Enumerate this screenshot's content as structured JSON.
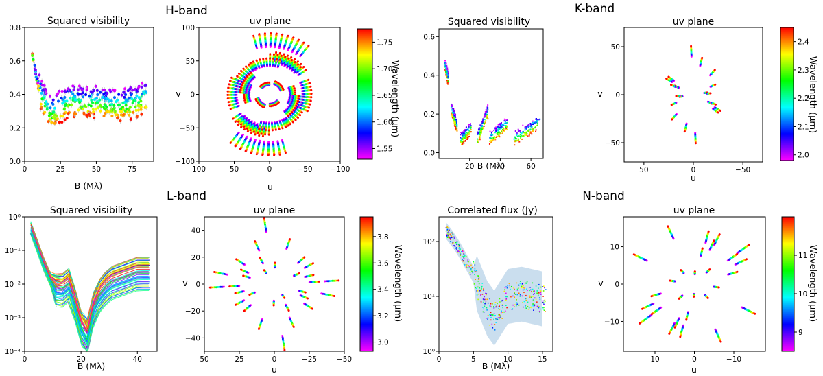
{
  "figure": {
    "colorbar_label": "Wavelength (μm)",
    "bands": [
      {
        "key": "H",
        "name": "H-band",
        "left": {
          "title": "Squared visibility",
          "xlabel": "B (Mλ)",
          "xlim": [
            0,
            90
          ],
          "ylim": [
            0,
            0.8
          ],
          "yscale": "linear",
          "xticks": [
            0,
            25,
            50,
            75
          ],
          "xtick_labels": [
            "0",
            "25",
            "50",
            "75"
          ],
          "yticks": [
            0,
            0.2,
            0.4,
            0.6,
            0.8
          ],
          "ytick_labels": [
            "0.0",
            "0.2",
            "0.4",
            "0.6",
            "0.8"
          ]
        },
        "uv": {
          "title": "uv plane",
          "xlabel": "u",
          "ylabel": "v",
          "lim": 100,
          "xticks": [
            100,
            50,
            0,
            -50,
            -100
          ],
          "xtick_labels": [
            "100",
            "50",
            "0",
            "−50",
            "−100"
          ],
          "yticks": [
            100,
            50,
            0,
            -50,
            -100
          ],
          "ytick_labels": [
            "100",
            "50",
            "0",
            "−50",
            "−100"
          ]
        },
        "colorbar": {
          "range": [
            1.53,
            1.775
          ],
          "ticks": [
            1.55,
            1.6,
            1.65,
            1.7,
            1.75
          ],
          "tick_labels": [
            "1.55",
            "1.60",
            "1.65",
            "1.70",
            "1.75"
          ]
        }
      },
      {
        "key": "K",
        "name": "K-band",
        "left": {
          "title": "Squared visibility",
          "xlabel": "B (Mλ)",
          "xlim": [
            0,
            68
          ],
          "ylim": [
            -0.03,
            0.64
          ],
          "yscale": "linear",
          "xticks": [
            20,
            40,
            60
          ],
          "xtick_labels": [
            "20",
            "40",
            "60"
          ],
          "yticks": [
            0,
            0.2,
            0.4,
            0.6
          ],
          "ytick_labels": [
            "0.0",
            "0.2",
            "0.4",
            "0.6"
          ]
        },
        "uv": {
          "title": "uv plane",
          "xlabel": "u",
          "ylabel": "v",
          "lim": 70,
          "xticks": [
            50,
            0,
            -50
          ],
          "xtick_labels": [
            "50",
            "0",
            "−50"
          ],
          "yticks": [
            50,
            0,
            -50
          ],
          "ytick_labels": [
            "50",
            "0",
            "−50"
          ]
        },
        "colorbar": {
          "range": [
            1.98,
            2.45
          ],
          "ticks": [
            2.0,
            2.1,
            2.2,
            2.3,
            2.4
          ],
          "tick_labels": [
            "2.0",
            "2.1",
            "2.2",
            "2.3",
            "2.4"
          ]
        }
      },
      {
        "key": "L",
        "name": "L-band",
        "left": {
          "title": "Squared visibility",
          "xlabel": "B (Mλ)",
          "xlim": [
            0,
            47
          ],
          "ylim": [
            -4,
            0
          ],
          "yscale": "log",
          "xticks": [
            0,
            20,
            40
          ],
          "xtick_labels": [
            "0",
            "20",
            "40"
          ],
          "yticks": [
            0,
            -1,
            -2,
            -3,
            -4
          ],
          "ytick_labels": [
            "10⁰",
            "10⁻¹",
            "10⁻²",
            "10⁻³",
            "10⁻⁴"
          ]
        },
        "uv": {
          "title": "uv plane",
          "xlabel": "u",
          "ylabel": "v",
          "lim": 50,
          "xticks": [
            50,
            25,
            0,
            -25,
            -50
          ],
          "xtick_labels": [
            "50",
            "25",
            "0",
            "−25",
            "−50"
          ],
          "yticks": [
            40,
            20,
            0,
            -20,
            -40
          ],
          "ytick_labels": [
            "40",
            "20",
            "0",
            "−20",
            "−40"
          ]
        },
        "colorbar": {
          "range": [
            2.93,
            3.95
          ],
          "ticks": [
            3.0,
            3.2,
            3.4,
            3.6,
            3.8
          ],
          "tick_labels": [
            "3.0",
            "3.2",
            "3.4",
            "3.6",
            "3.8"
          ]
        }
      },
      {
        "key": "N",
        "name": "N-band",
        "left": {
          "title": "Correlated flux (Jy)",
          "xlabel": "B (Mλ)",
          "xlim": [
            0,
            16.5
          ],
          "ylim": [
            0,
            2.45
          ],
          "yscale": "log",
          "xticks": [
            0,
            5,
            10,
            15
          ],
          "xtick_labels": [
            "0",
            "5",
            "10",
            "15"
          ],
          "yticks": [
            0,
            1,
            2
          ],
          "ytick_labels": [
            "10⁰",
            "10¹",
            "10²"
          ]
        },
        "uv": {
          "title": "uv plane",
          "xlabel": "u",
          "ylabel": "v",
          "lim": 18,
          "xticks": [
            10,
            0,
            -10
          ],
          "xtick_labels": [
            "10",
            "0",
            "−10"
          ],
          "yticks": [
            10,
            0,
            -10
          ],
          "ytick_labels": [
            "10",
            "0",
            "−10"
          ]
        },
        "colorbar": {
          "range": [
            8.5,
            12.0
          ],
          "ticks": [
            9,
            10,
            11
          ],
          "tick_labels": [
            "9",
            "10",
            "11"
          ]
        }
      }
    ]
  },
  "chart_data": [
    {
      "type": "scatter",
      "band": "H-band",
      "title": "Squared visibility",
      "xlabel": "B (Mλ)",
      "ylabel": "",
      "xlim": [
        0,
        90
      ],
      "ylim": [
        0,
        0.8
      ],
      "trend_B": [
        5,
        8,
        12,
        18,
        25,
        32,
        40,
        50,
        60,
        70,
        80,
        85
      ],
      "trend_V2": [
        0.66,
        0.5,
        0.38,
        0.28,
        0.32,
        0.36,
        0.34,
        0.35,
        0.33,
        0.33,
        0.36,
        0.38
      ]
    },
    {
      "type": "scatter",
      "band": "H-band",
      "title": "uv plane",
      "xlabel": "u",
      "ylabel": "v",
      "xlim": [
        100,
        -100
      ],
      "ylim": [
        -100,
        100
      ]
    },
    {
      "type": "scatter",
      "band": "K-band",
      "title": "Squared visibility",
      "xlabel": "B (Mλ)",
      "ylabel": "",
      "xlim": [
        0,
        68
      ],
      "ylim": [
        -0.03,
        0.64
      ],
      "groups_B": [
        [
          4,
          6
        ],
        [
          8,
          12
        ],
        [
          14,
          21
        ],
        [
          25,
          32
        ],
        [
          33,
          45
        ],
        [
          49,
          66
        ]
      ],
      "groups_V2": [
        [
          0.44,
          0.37
        ],
        [
          0.22,
          0.12
        ],
        [
          0.05,
          0.12
        ],
        [
          0.06,
          0.2
        ],
        [
          0.06,
          0.14
        ],
        [
          0.06,
          0.15
        ]
      ]
    },
    {
      "type": "scatter",
      "band": "K-band",
      "title": "uv plane",
      "xlabel": "u",
      "ylabel": "v",
      "xlim": [
        70,
        -70
      ],
      "ylim": [
        -70,
        70
      ]
    },
    {
      "type": "line",
      "band": "L-band",
      "title": "Squared visibility",
      "xlabel": "B (Mλ)",
      "ylabel": "",
      "xlim": [
        0,
        47
      ],
      "ylim": [
        0.0001,
        1
      ],
      "yscale": "log",
      "trend_B": [
        2,
        5,
        8,
        12,
        16,
        20,
        22,
        25,
        30,
        40
      ],
      "trend_V2": [
        0.5,
        0.1,
        0.02,
        0.005,
        0.01,
        0.0005,
        0.0002,
        0.003,
        0.01,
        0.02
      ]
    },
    {
      "type": "scatter",
      "band": "L-band",
      "title": "uv plane",
      "xlabel": "u",
      "ylabel": "v",
      "xlim": [
        50,
        -50
      ],
      "ylim": [
        -48,
        48
      ]
    },
    {
      "type": "line",
      "band": "N-band",
      "title": "Correlated flux (Jy)",
      "xlabel": "B (Mλ)",
      "ylabel": "",
      "xlim": [
        0,
        16.5
      ],
      "ylim": [
        1,
        280
      ],
      "yscale": "log",
      "trend_B": [
        1,
        2,
        3,
        5,
        7,
        8,
        10,
        12,
        15
      ],
      "trend_flux": [
        160,
        110,
        70,
        25,
        6,
        4,
        10,
        11,
        9
      ]
    },
    {
      "type": "scatter",
      "band": "N-band",
      "title": "uv plane",
      "xlabel": "u",
      "ylabel": "v",
      "xlim": [
        18,
        -18
      ],
      "ylim": [
        -18,
        18
      ]
    }
  ]
}
